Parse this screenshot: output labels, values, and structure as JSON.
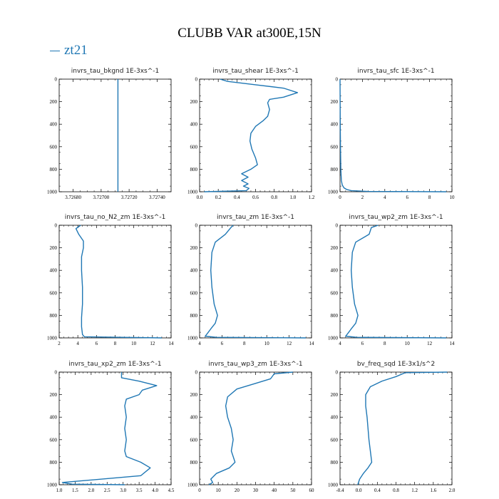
{
  "figure": {
    "title": "CLUBB VAR at300E,15N",
    "legend": {
      "label": "zt21",
      "color": "#1f77b4"
    }
  },
  "chart_data": [
    {
      "type": "line",
      "title": "invrs_tau_bkgnd   1E-3xs^-1",
      "xlim": [
        3.7267,
        3.7275
      ],
      "ylim": [
        1000,
        0
      ],
      "xticks": [
        "3.72680",
        "3.72700",
        "3.72720",
        "3.72740"
      ],
      "xtick_values": [
        3.7268,
        3.727,
        3.7272,
        3.7274
      ],
      "yticks": [
        "0",
        "200",
        "400",
        "600",
        "800",
        "1000"
      ],
      "series": [
        {
          "x": [
            3.72712,
            3.72712
          ],
          "y": [
            0,
            1000
          ]
        }
      ]
    },
    {
      "type": "line",
      "title": "invrs_tau_shear   1E-3xs^-1",
      "xlim": [
        0.0,
        1.2
      ],
      "ylim": [
        1000,
        0
      ],
      "xticks": [
        "0.0",
        "0.2",
        "0.4",
        "0.6",
        "0.8",
        "1.0",
        "1.2"
      ],
      "xtick_values": [
        0.0,
        0.2,
        0.4,
        0.6,
        0.8,
        1.0,
        1.2
      ],
      "yticks": [
        "0",
        "200",
        "400",
        "600",
        "800",
        "1000"
      ],
      "series": [
        {
          "x": [
            0.22,
            0.3,
            0.6,
            0.9,
            1.05,
            0.9,
            0.75,
            0.73,
            0.75,
            0.73,
            0.68,
            0.6,
            0.55,
            0.54,
            0.56,
            0.6,
            0.62,
            0.55,
            0.45,
            0.52,
            0.45,
            0.52,
            0.47,
            0.53,
            0.5,
            0.05
          ],
          "y": [
            0,
            20,
            50,
            80,
            120,
            160,
            180,
            210,
            270,
            330,
            370,
            420,
            480,
            550,
            620,
            700,
            760,
            800,
            840,
            870,
            900,
            930,
            950,
            970,
            990,
            1000
          ]
        }
      ]
    },
    {
      "type": "line",
      "title": "invrs_tau_sfc   1E-3xs^-1",
      "xlim": [
        0,
        10
      ],
      "ylim": [
        1000,
        0
      ],
      "xticks": [
        "0",
        "2",
        "4",
        "6",
        "8",
        "10"
      ],
      "xtick_values": [
        0,
        2,
        4,
        6,
        8,
        10
      ],
      "yticks": [
        "0",
        "200",
        "400",
        "600",
        "800",
        "1000"
      ],
      "series": [
        {
          "x": [
            0.0,
            0.01,
            0.02,
            0.04,
            0.07,
            0.12,
            0.2,
            0.35,
            0.6,
            1.0,
            2.5,
            9.5
          ],
          "y": [
            0,
            200,
            400,
            600,
            800,
            900,
            940,
            965,
            980,
            990,
            997,
            1000
          ]
        }
      ]
    },
    {
      "type": "line",
      "title": "invrs_tau_no_N2_zm   1E-3xs^-1",
      "xlim": [
        2,
        14
      ],
      "ylim": [
        1000,
        0
      ],
      "xticks": [
        "2",
        "4",
        "6",
        "8",
        "10",
        "12",
        "14"
      ],
      "xtick_values": [
        2,
        4,
        6,
        8,
        10,
        12,
        14
      ],
      "yticks": [
        "0",
        "200",
        "400",
        "600",
        "800",
        "1000"
      ],
      "series": [
        {
          "x": [
            4.3,
            3.8,
            4.1,
            4.6,
            4.6,
            4.4,
            4.4,
            4.5,
            4.5,
            4.4,
            4.4,
            4.5,
            4.7,
            13.0
          ],
          "y": [
            0,
            30,
            80,
            140,
            200,
            280,
            400,
            550,
            700,
            820,
            900,
            970,
            990,
            1000
          ]
        }
      ]
    },
    {
      "type": "line",
      "title": "invrs_tau_zm   1E-3xs^-1",
      "xlim": [
        4,
        14
      ],
      "ylim": [
        1000,
        0
      ],
      "xticks": [
        "4",
        "6",
        "8",
        "10",
        "12",
        "14"
      ],
      "xtick_values": [
        4,
        6,
        8,
        10,
        12,
        14
      ],
      "yticks": [
        "0",
        "200",
        "400",
        "600",
        "800",
        "1000"
      ],
      "series": [
        {
          "x": [
            7.0,
            6.8,
            6.3,
            5.4,
            5.1,
            5.0,
            5.1,
            5.3,
            5.6,
            5.4,
            5.0,
            4.7,
            4.5,
            5.5,
            13.5
          ],
          "y": [
            0,
            20,
            80,
            150,
            240,
            400,
            550,
            700,
            800,
            870,
            920,
            960,
            985,
            995,
            1000
          ]
        }
      ]
    },
    {
      "type": "line",
      "title": "invrs_tau_wp2_zm   1E-3xs^-1",
      "xlim": [
        4,
        14
      ],
      "ylim": [
        1000,
        0
      ],
      "xticks": [
        "4",
        "6",
        "8",
        "10",
        "12",
        "14"
      ],
      "xtick_values": [
        4,
        6,
        8,
        10,
        12,
        14
      ],
      "yticks": [
        "0",
        "200",
        "400",
        "600",
        "800",
        "1000"
      ],
      "series": [
        {
          "x": [
            7.4,
            6.8,
            6.6,
            5.4,
            5.1,
            5.0,
            5.1,
            5.3,
            5.6,
            5.4,
            5.0,
            4.7,
            4.5,
            5.5,
            13.5
          ],
          "y": [
            0,
            20,
            80,
            150,
            240,
            400,
            550,
            700,
            800,
            870,
            920,
            960,
            985,
            995,
            1000
          ]
        }
      ]
    },
    {
      "type": "line",
      "title": "invrs_tau_xp2_zm   1E-3xs^-1",
      "xlim": [
        1.0,
        4.5
      ],
      "ylim": [
        1000,
        0
      ],
      "xticks": [
        "1.0",
        "1.5",
        "2.0",
        "2.5",
        "3.0",
        "3.5",
        "4.0",
        "4.5"
      ],
      "xtick_values": [
        1.0,
        1.5,
        2.0,
        2.5,
        3.0,
        3.5,
        4.0,
        4.5
      ],
      "yticks": [
        "0",
        "200",
        "400",
        "600",
        "800",
        "1000"
      ],
      "series": [
        {
          "x": [
            2.95,
            2.95,
            3.5,
            4.05,
            3.6,
            3.5,
            3.1,
            3.05,
            3.1,
            3.05,
            3.1,
            3.05,
            3.1,
            3.55,
            3.85,
            3.55,
            1.1,
            1.4,
            3.05
          ],
          "y": [
            0,
            50,
            80,
            120,
            160,
            200,
            240,
            300,
            400,
            500,
            600,
            700,
            750,
            800,
            850,
            920,
            980,
            995,
            1000
          ]
        }
      ]
    },
    {
      "type": "line",
      "title": "invrs_tau_wp3_zm   1E-3xs^-1",
      "xlim": [
        0,
        60
      ],
      "ylim": [
        1000,
        0
      ],
      "xticks": [
        "0",
        "10",
        "20",
        "30",
        "40",
        "50",
        "60"
      ],
      "xtick_values": [
        0,
        10,
        20,
        30,
        40,
        50,
        60
      ],
      "yticks": [
        "0",
        "200",
        "400",
        "600",
        "800",
        "1000"
      ],
      "series": [
        {
          "x": [
            50,
            40,
            38,
            30,
            20,
            15,
            14,
            15,
            17,
            18,
            17,
            19,
            16,
            9,
            6,
            7,
            5
          ],
          "y": [
            0,
            15,
            60,
            100,
            150,
            220,
            300,
            400,
            500,
            600,
            700,
            800,
            850,
            900,
            950,
            980,
            1000
          ]
        }
      ]
    },
    {
      "type": "line",
      "title": "bv_freq_sqd   1E-3x1/s^2",
      "xlim": [
        -0.4,
        2.0
      ],
      "ylim": [
        1000,
        0
      ],
      "xticks": [
        "-0.4",
        "0.0",
        "0.4",
        "0.8",
        "1.2",
        "1.6",
        "2.0"
      ],
      "xtick_values": [
        -0.4,
        0.0,
        0.4,
        0.8,
        1.2,
        1.6,
        2.0
      ],
      "yticks": [
        "0",
        "200",
        "400",
        "600",
        "800",
        "1000"
      ],
      "series": [
        {
          "x": [
            1.9,
            1.0,
            0.8,
            0.5,
            0.25,
            0.15,
            0.15,
            0.18,
            0.2,
            0.22,
            0.25,
            0.28,
            0.2,
            0.1,
            0.02,
            -0.02
          ],
          "y": [
            0,
            5,
            40,
            80,
            130,
            200,
            300,
            400,
            500,
            600,
            700,
            800,
            850,
            900,
            950,
            1000
          ]
        }
      ]
    }
  ]
}
